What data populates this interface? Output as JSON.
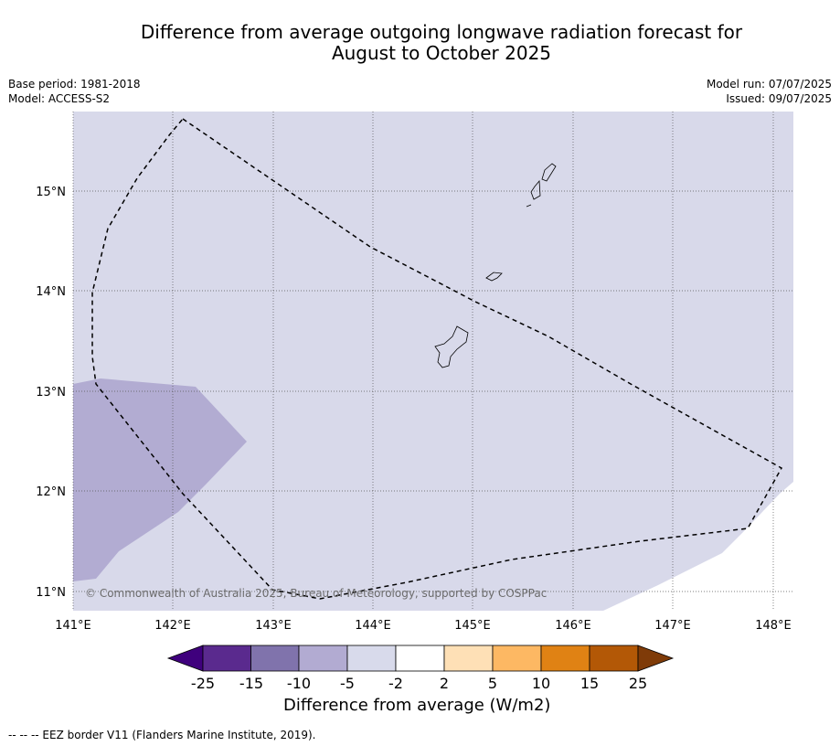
{
  "title": {
    "line1": "Difference from average outgoing longwave radiation forecast for",
    "line2": "August to October 2025"
  },
  "meta": {
    "base_period": "Base period: 1981-2018",
    "model": "Model: ACCESS-S2",
    "model_run": "Model run: 07/07/2025",
    "issued": "Issued: 09/07/2025"
  },
  "map": {
    "lat_labels": [
      "15°N",
      "14°N",
      "13°N",
      "12°N",
      "11°N"
    ],
    "lon_labels": [
      "141°E",
      "142°E",
      "143°E",
      "144°E",
      "145°E",
      "146°E",
      "147°E",
      "148°E"
    ],
    "copyright": "© Commonwealth of Australia 2025, Bureau of Meteorology, supported by COSPPac",
    "background_category": "-5 to -2",
    "region_category": "-10 to -5",
    "background_color": "#d8d9ea",
    "region_color": "#b2acd2"
  },
  "colorbar": {
    "title": "Difference from average (W/m2)",
    "ticks": [
      "-25",
      "-15",
      "-10",
      "-5",
      "-2",
      "2",
      "5",
      "10",
      "15",
      "25"
    ],
    "colors": [
      "#3f007d",
      "#5a2a8e",
      "#8073ac",
      "#b2abd2",
      "#d8daeb",
      "#ffffff",
      "#fee0b6",
      "#fdb863",
      "#e08214",
      "#b35806",
      "#7f3b08"
    ]
  },
  "footnote": "--  --  -- EEZ border V11 (Flanders Marine Institute, 2019)."
}
